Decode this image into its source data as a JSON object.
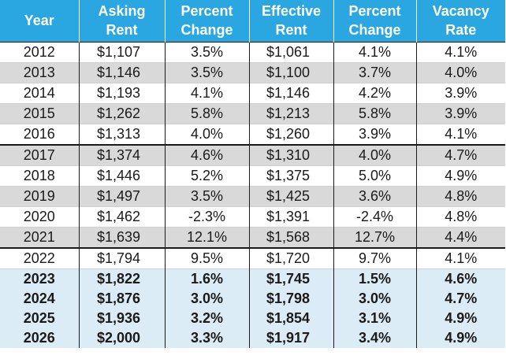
{
  "header": {
    "year": "Year",
    "asking_rent": [
      "Asking",
      "Rent"
    ],
    "pct_change_1": [
      "Percent",
      "Change"
    ],
    "effective_rent": [
      "Effective",
      "Rent"
    ],
    "pct_change_2": [
      "Percent",
      "Change"
    ],
    "vacancy_rate": [
      "Vacancy",
      "Rate"
    ]
  },
  "colors": {
    "header_bg": "#2aa7e1",
    "stripe_gray": "#d9d9d9",
    "forecast_bg": "#dcecf6"
  },
  "rows": [
    {
      "year": "2012",
      "asking_rent": "$1,107",
      "pct_change_1": "3.5%",
      "effective_rent": "$1,061",
      "pct_change_2": "4.1%",
      "vacancy_rate": "4.1%"
    },
    {
      "year": "2013",
      "asking_rent": "$1,146",
      "pct_change_1": "3.5%",
      "effective_rent": "$1,100",
      "pct_change_2": "3.7%",
      "vacancy_rate": "4.0%"
    },
    {
      "year": "2014",
      "asking_rent": "$1,193",
      "pct_change_1": "4.1%",
      "effective_rent": "$1,146",
      "pct_change_2": "4.2%",
      "vacancy_rate": "3.9%"
    },
    {
      "year": "2015",
      "asking_rent": "$1,262",
      "pct_change_1": "5.8%",
      "effective_rent": "$1,213",
      "pct_change_2": "5.8%",
      "vacancy_rate": "3.9%"
    },
    {
      "year": "2016",
      "asking_rent": "$1,313",
      "pct_change_1": "4.0%",
      "effective_rent": "$1,260",
      "pct_change_2": "3.9%",
      "vacancy_rate": "4.1%"
    },
    {
      "year": "2017",
      "asking_rent": "$1,374",
      "pct_change_1": "4.6%",
      "effective_rent": "$1,310",
      "pct_change_2": "4.0%",
      "vacancy_rate": "4.7%"
    },
    {
      "year": "2018",
      "asking_rent": "$1,446",
      "pct_change_1": "5.2%",
      "effective_rent": "$1,375",
      "pct_change_2": "5.0%",
      "vacancy_rate": "4.9%"
    },
    {
      "year": "2019",
      "asking_rent": "$1,497",
      "pct_change_1": "3.5%",
      "effective_rent": "$1,425",
      "pct_change_2": "3.6%",
      "vacancy_rate": "4.8%"
    },
    {
      "year": "2020",
      "asking_rent": "$1,462",
      "pct_change_1": "-2.3%",
      "effective_rent": "$1,391",
      "pct_change_2": "-2.4%",
      "vacancy_rate": "4.8%"
    },
    {
      "year": "2021",
      "asking_rent": "$1,639",
      "pct_change_1": "12.1%",
      "effective_rent": "$1,568",
      "pct_change_2": "12.7%",
      "vacancy_rate": "4.4%"
    },
    {
      "year": "2022",
      "asking_rent": "$1,794",
      "pct_change_1": "9.5%",
      "effective_rent": "$1,720",
      "pct_change_2": "9.7%",
      "vacancy_rate": "4.1%"
    },
    {
      "year": "2023",
      "asking_rent": "$1,822",
      "pct_change_1": "1.6%",
      "effective_rent": "$1,745",
      "pct_change_2": "1.5%",
      "vacancy_rate": "4.6%"
    },
    {
      "year": "2024",
      "asking_rent": "$1,876",
      "pct_change_1": "3.0%",
      "effective_rent": "$1,798",
      "pct_change_2": "3.0%",
      "vacancy_rate": "4.7%"
    },
    {
      "year": "2025",
      "asking_rent": "$1,936",
      "pct_change_1": "3.2%",
      "effective_rent": "$1,854",
      "pct_change_2": "3.1%",
      "vacancy_rate": "4.9%"
    },
    {
      "year": "2026",
      "asking_rent": "$2,000",
      "pct_change_1": "3.3%",
      "effective_rent": "$1,917",
      "pct_change_2": "3.4%",
      "vacancy_rate": "4.9%"
    }
  ]
}
